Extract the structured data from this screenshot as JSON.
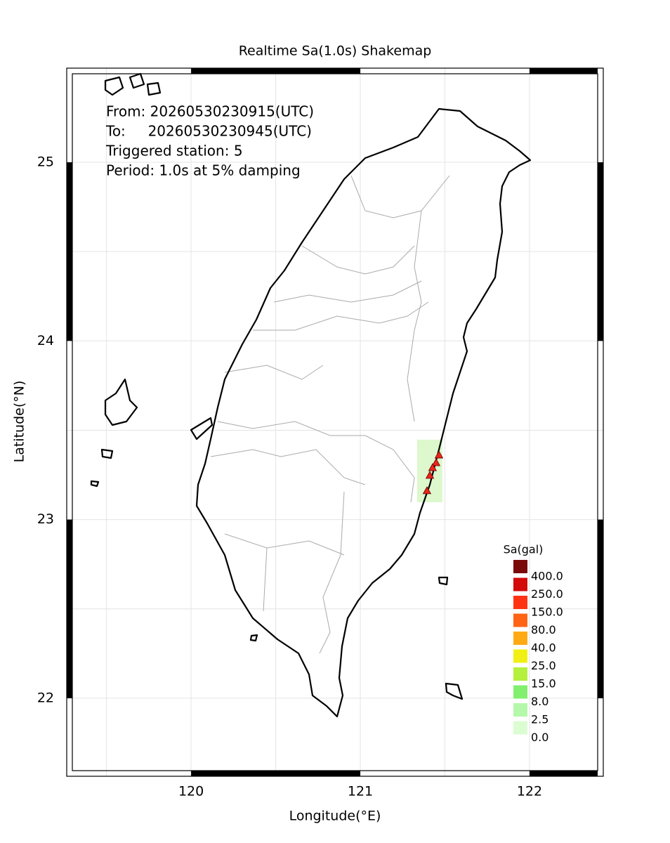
{
  "chart_data": {
    "type": "map",
    "title": "Realtime Sa(1.0s) Shakemap",
    "info_lines": [
      "From: 20260530230915(UTC)",
      "To:     20260530230945(UTC)",
      "Triggered station: 5",
      "Period: 1.0s at 5% damping"
    ],
    "x_label": "Longitude(°E)",
    "y_label": "Latitude(°N)",
    "xlim": [
      119.265,
      122.436
    ],
    "ylim": [
      21.563,
      25.527
    ],
    "xticks": [
      120,
      121,
      122
    ],
    "yticks": [
      22,
      23,
      24,
      25
    ],
    "grid_x": [
      119.5,
      120,
      120.5,
      121,
      121.5,
      122
    ],
    "grid_y": [
      22,
      22.5,
      23,
      23.5,
      24,
      24.5,
      25
    ],
    "shaded_area": {
      "lon": [
        121.336,
        121.485
      ],
      "lat": [
        23.097,
        23.447
      ],
      "color": "#dcf8cc"
    },
    "stations": {
      "color": "#e8261c",
      "lon": [
        121.465,
        121.448,
        121.427,
        121.411,
        121.394
      ],
      "lat": [
        23.36,
        23.317,
        23.289,
        23.246,
        23.16
      ]
    },
    "legend": {
      "title": "Sa(gal)",
      "labels": [
        "400.0",
        "250.0",
        "150.0",
        "80.0",
        "40.0",
        "25.0",
        "15.0",
        "8.0",
        "2.5",
        "0.0"
      ],
      "colors": [
        "#7a0a0a",
        "#d20a0a",
        "#ff3214",
        "#ff6414",
        "#ffaa14",
        "#f0f014",
        "#b4f03c",
        "#82f06e",
        "#b4f8aa",
        "#dcfcd2"
      ]
    }
  }
}
